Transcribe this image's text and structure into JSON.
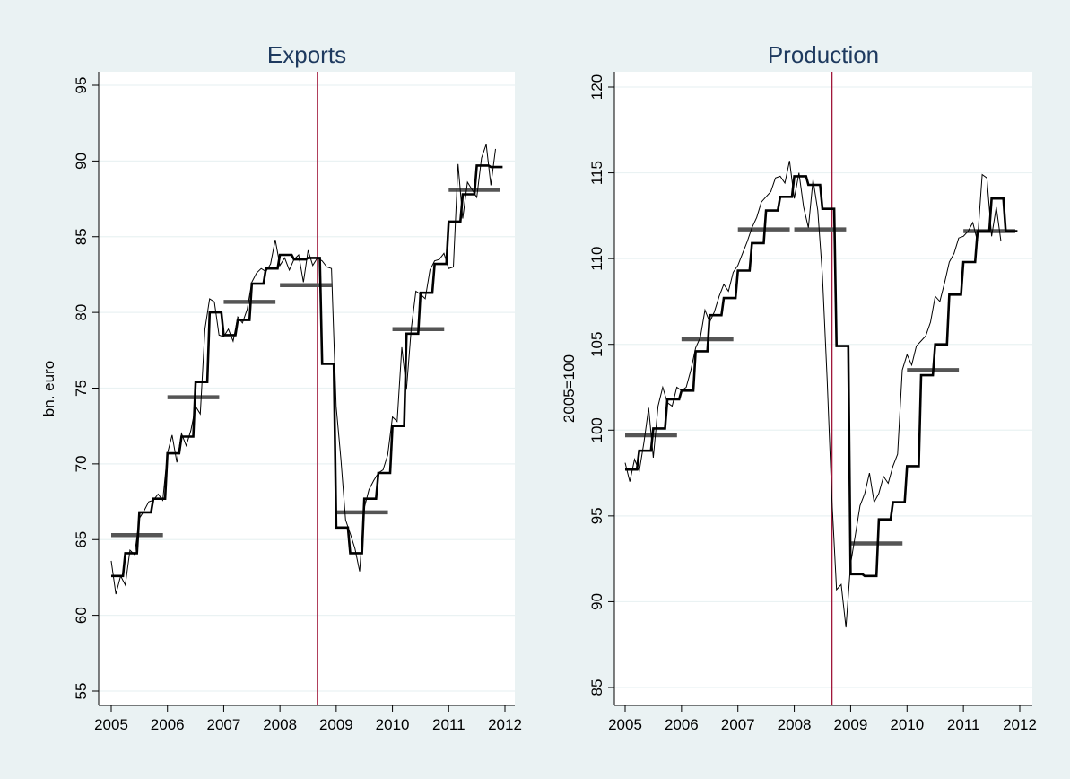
{
  "colors": {
    "background": "#eaf2f3",
    "plot_area": "#ffffff",
    "vline": "#a0173a",
    "annual_bar": "#555555",
    "series": "#000000"
  },
  "chart_data": [
    {
      "type": "line",
      "title": "Exports",
      "ylabel": "bn. euro",
      "xlim": [
        2005,
        2012
      ],
      "ylim": [
        55,
        95
      ],
      "xticks": [
        2005,
        2006,
        2007,
        2008,
        2009,
        2010,
        2011,
        2012
      ],
      "yticks": [
        55,
        60,
        65,
        70,
        75,
        80,
        85,
        90,
        95
      ],
      "grid": true,
      "vline_x": 2008.667,
      "annual_means": [
        {
          "x0": 2005.0,
          "x1": 2005.92,
          "y": 65.3
        },
        {
          "x0": 2006.0,
          "x1": 2006.92,
          "y": 74.4
        },
        {
          "x0": 2007.0,
          "x1": 2007.92,
          "y": 80.7
        },
        {
          "x0": 2008.0,
          "x1": 2008.92,
          "y": 81.8
        },
        {
          "x0": 2009.0,
          "x1": 2009.92,
          "y": 66.8
        },
        {
          "x0": 2010.0,
          "x1": 2010.92,
          "y": 78.9
        },
        {
          "x0": 2011.0,
          "x1": 2011.92,
          "y": 88.1
        }
      ],
      "series": [
        {
          "style": "monthly",
          "start": 2005.0,
          "step": 0.08333,
          "values": [
            63.6,
            61.4,
            62.6,
            62.0,
            64.3,
            64.0,
            66.4,
            66.9,
            67.5,
            67.6,
            68.0,
            67.6,
            70.7,
            71.9,
            70.1,
            72.0,
            71.2,
            72.2,
            73.8,
            73.3,
            78.9,
            80.9,
            80.7,
            78.5,
            78.4,
            78.9,
            78.1,
            79.7,
            79.3,
            80.2,
            82.0,
            82.6,
            82.9,
            82.7,
            83.2,
            84.8,
            83.1,
            83.6,
            82.8,
            83.5,
            83.8,
            82.0,
            84.1,
            83.1,
            83.6,
            83.4,
            83.0,
            82.9,
            73.8,
            70.3,
            66.3,
            65.4,
            64.4,
            62.9,
            67.1,
            68.3,
            68.9,
            69.4,
            69.6,
            70.6,
            73.1,
            72.8,
            77.7,
            74.9,
            78.9,
            81.4,
            81.2,
            80.9,
            82.8,
            83.4,
            83.5,
            83.9,
            82.9,
            83.0,
            89.8,
            86.2,
            88.6,
            88.1,
            87.6,
            90.2,
            91.1,
            88.4,
            90.8
          ]
        },
        {
          "style": "quarterly",
          "start": 2005.0,
          "step": 0.25,
          "values": [
            62.6,
            64.1,
            66.8,
            67.7,
            70.7,
            71.8,
            75.4,
            80.0,
            78.5,
            79.5,
            81.9,
            82.9,
            83.8,
            83.5,
            83.6,
            76.6,
            65.8,
            64.1,
            67.7,
            69.4,
            72.5,
            78.6,
            81.3,
            83.2,
            86.0,
            87.8,
            89.7,
            89.6
          ]
        }
      ]
    },
    {
      "type": "line",
      "title": "Production",
      "ylabel": "2005=100",
      "xlim": [
        2005,
        2012
      ],
      "ylim": [
        85,
        120
      ],
      "xticks": [
        2005,
        2006,
        2007,
        2008,
        2009,
        2010,
        2011,
        2012
      ],
      "yticks": [
        85,
        90,
        95,
        100,
        105,
        110,
        115,
        120
      ],
      "grid": true,
      "vline_x": 2008.667,
      "annual_means": [
        {
          "x0": 2005.0,
          "x1": 2005.92,
          "y": 99.7
        },
        {
          "x0": 2006.0,
          "x1": 2006.92,
          "y": 105.3
        },
        {
          "x0": 2007.0,
          "x1": 2007.92,
          "y": 111.7
        },
        {
          "x0": 2008.0,
          "x1": 2008.92,
          "y": 111.7
        },
        {
          "x0": 2009.0,
          "x1": 2009.92,
          "y": 93.4
        },
        {
          "x0": 2010.0,
          "x1": 2010.92,
          "y": 103.5
        },
        {
          "x0": 2011.0,
          "x1": 2011.92,
          "y": 111.6
        }
      ],
      "series": [
        {
          "style": "monthly",
          "start": 2005.0,
          "step": 0.08333,
          "values": [
            98.1,
            97.0,
            98.3,
            97.6,
            99.3,
            101.3,
            98.4,
            101.4,
            102.5,
            101.6,
            101.4,
            102.5,
            102.3,
            102.5,
            103.5,
            104.8,
            105.4,
            107.0,
            106.3,
            106.9,
            107.8,
            108.5,
            108.1,
            109.2,
            109.6,
            110.3,
            111.0,
            111.8,
            112.4,
            113.3,
            113.6,
            113.9,
            114.7,
            114.8,
            114.4,
            115.7,
            113.5,
            115.0,
            113.0,
            111.8,
            114.6,
            112.8,
            109.0,
            103.0,
            96.0,
            90.7,
            91.0,
            88.5,
            92.2,
            93.9,
            95.6,
            96.3,
            97.5,
            95.8,
            96.3,
            97.3,
            96.9,
            97.9,
            98.6,
            103.5,
            104.4,
            103.8,
            104.9,
            105.2,
            105.5,
            106.3,
            107.8,
            107.5,
            108.6,
            109.8,
            110.3,
            111.2,
            111.3,
            111.6,
            112.1,
            111.0,
            114.9,
            114.7,
            111.3,
            113.0,
            111.0
          ]
        },
        {
          "style": "quarterly",
          "start": 2005.0,
          "step": 0.25,
          "values": [
            97.7,
            98.8,
            100.1,
            101.8,
            102.3,
            104.6,
            106.7,
            107.7,
            109.3,
            110.9,
            112.8,
            113.6,
            114.8,
            114.3,
            112.9,
            104.9,
            91.6,
            91.5,
            94.8,
            95.8,
            97.9,
            103.2,
            105.0,
            107.9,
            109.8,
            111.6,
            113.5,
            111.6
          ]
        }
      ]
    }
  ]
}
